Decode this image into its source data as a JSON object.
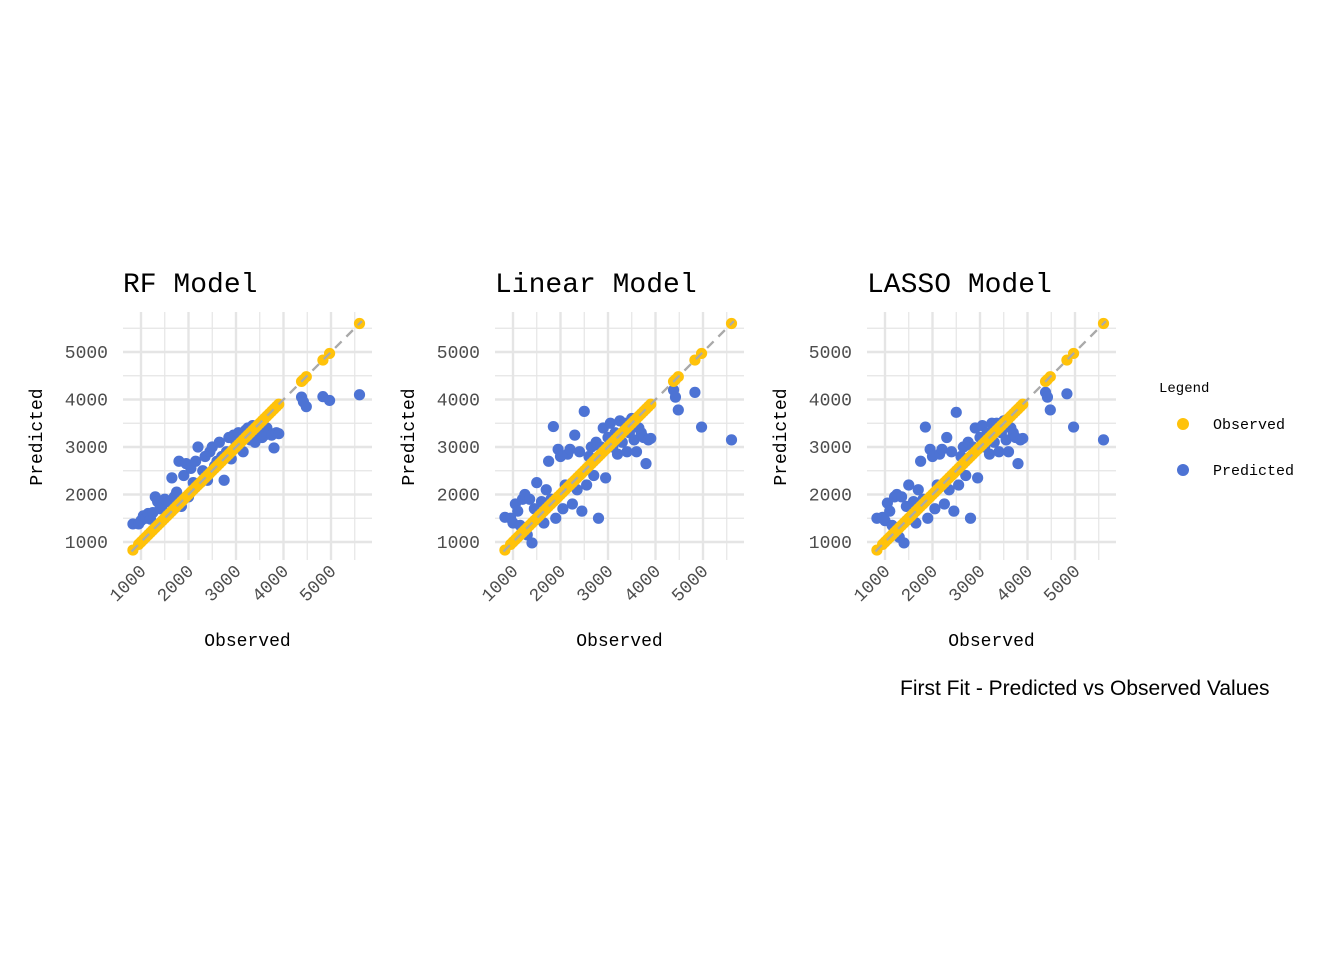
{
  "caption": "First Fit - Predicted vs Observed Values",
  "colors": {
    "observed": "#FFC20A",
    "predicted": "#4D73D4",
    "reference_line": "#AAAAAA",
    "grid": "#E5E5E5"
  },
  "legend": {
    "title": "Legend",
    "items": [
      "Observed",
      "Predicted"
    ]
  },
  "chart_data": [
    {
      "type": "scatter",
      "title": "RF Model",
      "xlabel": "Observed",
      "ylabel": "Predicted",
      "xticks": [
        "1000",
        "2000",
        "3000",
        "4000",
        "5000"
      ],
      "yticks": [
        "1000",
        "2000",
        "3000",
        "4000",
        "5000"
      ],
      "xlim": [
        620,
        5860
      ],
      "ylim": [
        620,
        5840
      ],
      "grid": true,
      "reference_line": "y = x (dashed)",
      "observed": [
        830,
        950,
        1000,
        1050,
        1100,
        1150,
        1200,
        1250,
        1300,
        1350,
        1400,
        1450,
        1500,
        1550,
        1600,
        1650,
        1700,
        1750,
        1800,
        1850,
        1900,
        1950,
        2000,
        2050,
        2100,
        2150,
        2200,
        2250,
        2300,
        2350,
        2400,
        2450,
        2500,
        2550,
        2600,
        2650,
        2700,
        2750,
        2800,
        2850,
        2900,
        2950,
        3000,
        3050,
        3100,
        3150,
        3200,
        3250,
        3300,
        3350,
        3400,
        3450,
        3500,
        3550,
        3600,
        3650,
        3700,
        3750,
        3800,
        3850,
        3900,
        4380,
        4420,
        4480,
        4830,
        4970,
        5600
      ],
      "predicted": [
        1380,
        1380,
        1450,
        1550,
        1500,
        1600,
        1480,
        1620,
        1950,
        1850,
        1700,
        1780,
        1900,
        1600,
        1850,
        2350,
        1950,
        2050,
        2700,
        1750,
        2400,
        2650,
        1950,
        2550,
        2250,
        2700,
        3000,
        2250,
        2500,
        2800,
        2300,
        2900,
        3000,
        2600,
        2700,
        3100,
        2800,
        2300,
        2900,
        3200,
        2750,
        3250,
        3100,
        3300,
        3200,
        2900,
        3350,
        3400,
        3150,
        3450,
        3100,
        3300,
        3350,
        3200,
        3250,
        3400,
        3300,
        3250,
        2980,
        3300,
        3280,
        4050,
        3950,
        3850,
        4060,
        3980,
        4100
      ]
    },
    {
      "type": "scatter",
      "title": "Linear Model",
      "xlabel": "Observed",
      "ylabel": "Predicted",
      "xticks": [
        "1000",
        "2000",
        "3000",
        "4000",
        "5000"
      ],
      "yticks": [
        "1000",
        "2000",
        "3000",
        "4000",
        "5000"
      ],
      "xlim": [
        620,
        5860
      ],
      "ylim": [
        620,
        5840
      ],
      "grid": true,
      "reference_line": "y = x (dashed)",
      "observed": [
        830,
        950,
        1000,
        1050,
        1100,
        1150,
        1200,
        1250,
        1300,
        1350,
        1400,
        1450,
        1500,
        1550,
        1600,
        1650,
        1700,
        1750,
        1800,
        1850,
        1900,
        1950,
        2000,
        2050,
        2100,
        2150,
        2200,
        2250,
        2300,
        2350,
        2400,
        2450,
        2500,
        2550,
        2600,
        2650,
        2700,
        2750,
        2800,
        2850,
        2900,
        2950,
        3000,
        3050,
        3100,
        3150,
        3200,
        3250,
        3300,
        3350,
        3400,
        3450,
        3500,
        3550,
        3600,
        3650,
        3700,
        3750,
        3800,
        3850,
        3900,
        4380,
        4420,
        4480,
        4830,
        4970,
        5600
      ],
      "predicted": [
        1520,
        1500,
        1400,
        1800,
        1650,
        1350,
        1900,
        2000,
        1150,
        1900,
        980,
        1700,
        2250,
        1500,
        1850,
        1400,
        2100,
        2700,
        1900,
        3430,
        1500,
        2950,
        2800,
        1700,
        2200,
        2850,
        2950,
        1800,
        3250,
        2100,
        2900,
        1650,
        3750,
        2200,
        2800,
        3000,
        2400,
        3100,
        1500,
        3000,
        3400,
        2350,
        3200,
        3500,
        3000,
        3300,
        2850,
        3550,
        3100,
        3500,
        2900,
        3300,
        3600,
        3150,
        2900,
        3400,
        3300,
        3200,
        2650,
        3150,
        3180,
        4200,
        4050,
        3780,
        4150,
        3420,
        3150
      ]
    },
    {
      "type": "scatter",
      "title": "LASSO Model",
      "xlabel": "Observed",
      "ylabel": "Predicted",
      "xticks": [
        "1000",
        "2000",
        "3000",
        "4000",
        "5000"
      ],
      "yticks": [
        "1000",
        "2000",
        "3000",
        "4000",
        "5000"
      ],
      "xlim": [
        620,
        5860
      ],
      "ylim": [
        620,
        5840
      ],
      "grid": true,
      "reference_line": "y = x (dashed)",
      "observed": [
        830,
        950,
        1000,
        1050,
        1100,
        1150,
        1200,
        1250,
        1300,
        1350,
        1400,
        1450,
        1500,
        1550,
        1600,
        1650,
        1700,
        1750,
        1800,
        1850,
        1900,
        1950,
        2000,
        2050,
        2100,
        2150,
        2200,
        2250,
        2300,
        2350,
        2400,
        2450,
        2500,
        2550,
        2600,
        2650,
        2700,
        2750,
        2800,
        2850,
        2900,
        2950,
        3000,
        3050,
        3100,
        3150,
        3200,
        3250,
        3300,
        3350,
        3400,
        3450,
        3500,
        3550,
        3600,
        3650,
        3700,
        3750,
        3800,
        3850,
        3900,
        4380,
        4420,
        4480,
        4830,
        4970,
        5600
      ],
      "predicted": [
        1500,
        1520,
        1450,
        1820,
        1650,
        1350,
        1950,
        2000,
        1100,
        1950,
        980,
        1750,
        2200,
        1500,
        1850,
        1400,
        2100,
        2700,
        1900,
        3420,
        1500,
        2950,
        2800,
        1700,
        2200,
        2850,
        2950,
        1800,
        3200,
        2100,
        2900,
        1650,
        3730,
        2200,
        2800,
        3000,
        2400,
        3100,
        1500,
        3000,
        3400,
        2350,
        3200,
        3450,
        3000,
        3300,
        2850,
        3500,
        3100,
        3500,
        2900,
        3300,
        3550,
        3150,
        2900,
        3400,
        3300,
        3200,
        2650,
        3150,
        3180,
        4150,
        4050,
        3780,
        4120,
        3420,
        3150
      ]
    }
  ]
}
